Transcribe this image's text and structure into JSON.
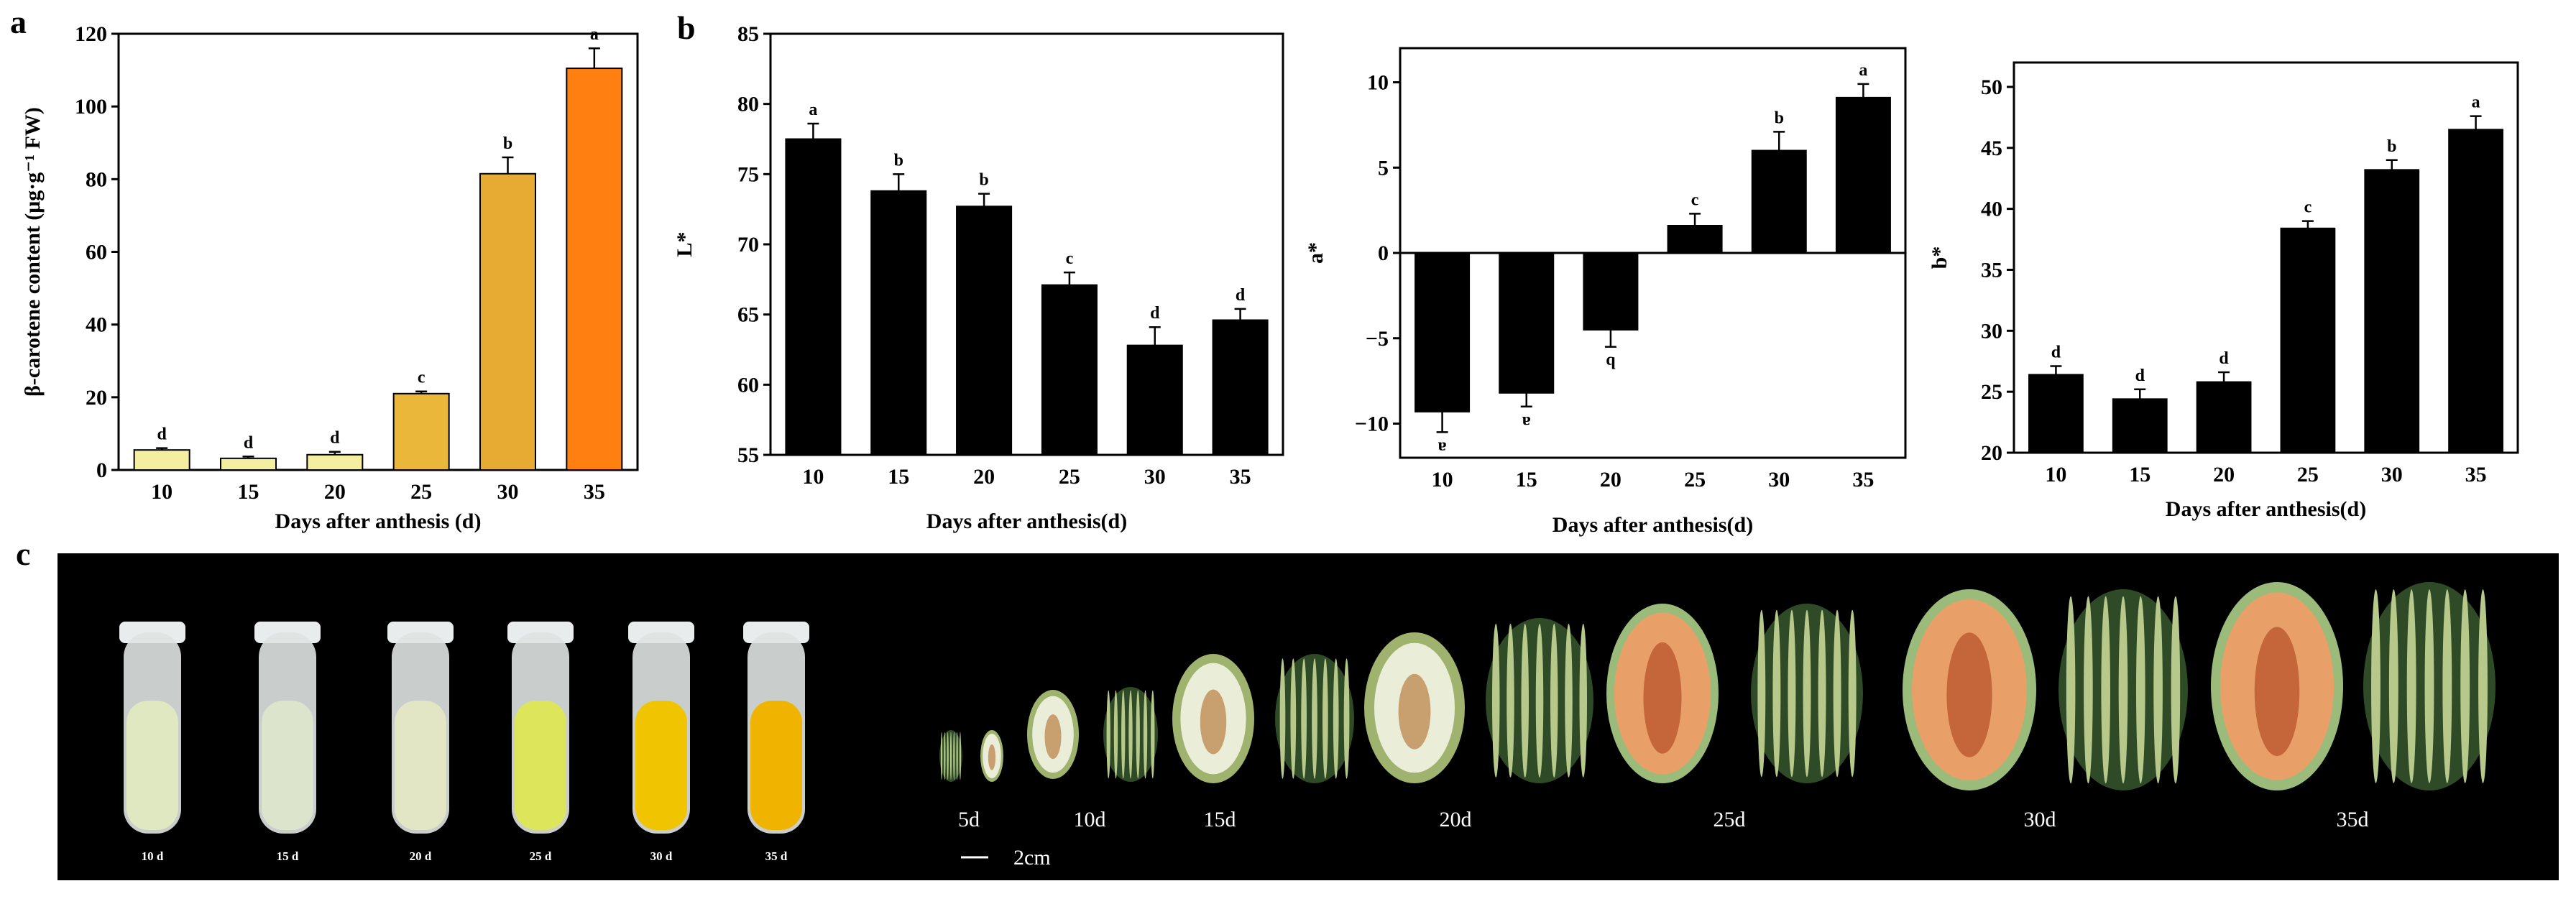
{
  "panel_labels": {
    "a": "a",
    "b": "b",
    "c": "c"
  },
  "chart_data": [
    {
      "id": "a",
      "type": "bar",
      "categories": [
        "10",
        "15",
        "20",
        "25",
        "30",
        "35"
      ],
      "values": [
        5.5,
        3.2,
        4.2,
        21,
        81.5,
        110.5
      ],
      "errors": [
        0.5,
        0.5,
        0.8,
        0.6,
        4.5,
        5.5
      ],
      "letters": [
        "d",
        "d",
        "d",
        "c",
        "b",
        "a"
      ],
      "colors": [
        "#f3eea0",
        "#f3eea0",
        "#f3eea0",
        "#ebb73a",
        "#e7aa33",
        "#ff7f10"
      ],
      "xlabel": "Days after anthesis (d)",
      "ylabel": "β-carotene content (μg·g⁻¹ FW)",
      "ylim": [
        0,
        120
      ],
      "yticks": [
        0,
        20,
        40,
        60,
        80,
        100,
        120
      ],
      "grid": false
    },
    {
      "id": "b1",
      "type": "bar",
      "categories": [
        "10",
        "15",
        "20",
        "25",
        "30",
        "35"
      ],
      "values": [
        77.5,
        73.8,
        72.7,
        67.1,
        62.8,
        64.6
      ],
      "errors": [
        1.1,
        1.2,
        0.9,
        0.9,
        1.3,
        0.8
      ],
      "letters": [
        "a",
        "b",
        "b",
        "c",
        "d",
        "d"
      ],
      "colors": [
        "#000000",
        "#000000",
        "#000000",
        "#000000",
        "#000000",
        "#000000"
      ],
      "xlabel": "Days after anthesis(d)",
      "ylabel": "L*",
      "ylim": [
        55,
        85
      ],
      "yticks": [
        55,
        60,
        65,
        70,
        75,
        80,
        85
      ],
      "grid": false
    },
    {
      "id": "b2",
      "type": "bar",
      "categories": [
        "10",
        "15",
        "20",
        "25",
        "30",
        "35"
      ],
      "values": [
        -9.3,
        -8.2,
        -4.5,
        1.6,
        6.0,
        9.1
      ],
      "errors": [
        1.2,
        0.8,
        1.0,
        0.7,
        1.1,
        0.8
      ],
      "letters": [
        "a",
        "a",
        "b",
        "c",
        "b",
        "a"
      ],
      "colors": [
        "#000000",
        "#000000",
        "#000000",
        "#000000",
        "#000000",
        "#000000"
      ],
      "xlabel": "Days after anthesis(d)",
      "ylabel": "a*",
      "ylim": [
        -12,
        12
      ],
      "yticks": [
        -10,
        -5,
        0,
        5,
        10
      ],
      "grid": false
    },
    {
      "id": "b3",
      "type": "bar",
      "categories": [
        "10",
        "15",
        "20",
        "25",
        "30",
        "35"
      ],
      "values": [
        26.4,
        24.4,
        25.8,
        38.4,
        43.2,
        46.5
      ],
      "errors": [
        0.7,
        0.8,
        0.8,
        0.6,
        0.8,
        1.1
      ],
      "letters": [
        "d",
        "d",
        "d",
        "c",
        "b",
        "a"
      ],
      "colors": [
        "#000000",
        "#000000",
        "#000000",
        "#000000",
        "#000000",
        "#000000"
      ],
      "xlabel": "Days after anthesis(d)",
      "ylabel": "b*",
      "ylim": [
        20,
        52
      ],
      "yticks": [
        20,
        25,
        30,
        35,
        40,
        45,
        50
      ],
      "grid": false
    }
  ],
  "photo": {
    "tube_labels": [
      "10 d",
      "15 d",
      "20 d",
      "25 d",
      "30 d",
      "35 d"
    ],
    "tube_colors": [
      "#dfe8c0",
      "#dde4cc",
      "#e2e6c4",
      "#dde65a",
      "#f1c400",
      "#f0b400"
    ],
    "fruit_labels": [
      "5d",
      "10d",
      "15d",
      "20d",
      "25d",
      "30d",
      "35d"
    ],
    "scale_label": "2cm"
  }
}
